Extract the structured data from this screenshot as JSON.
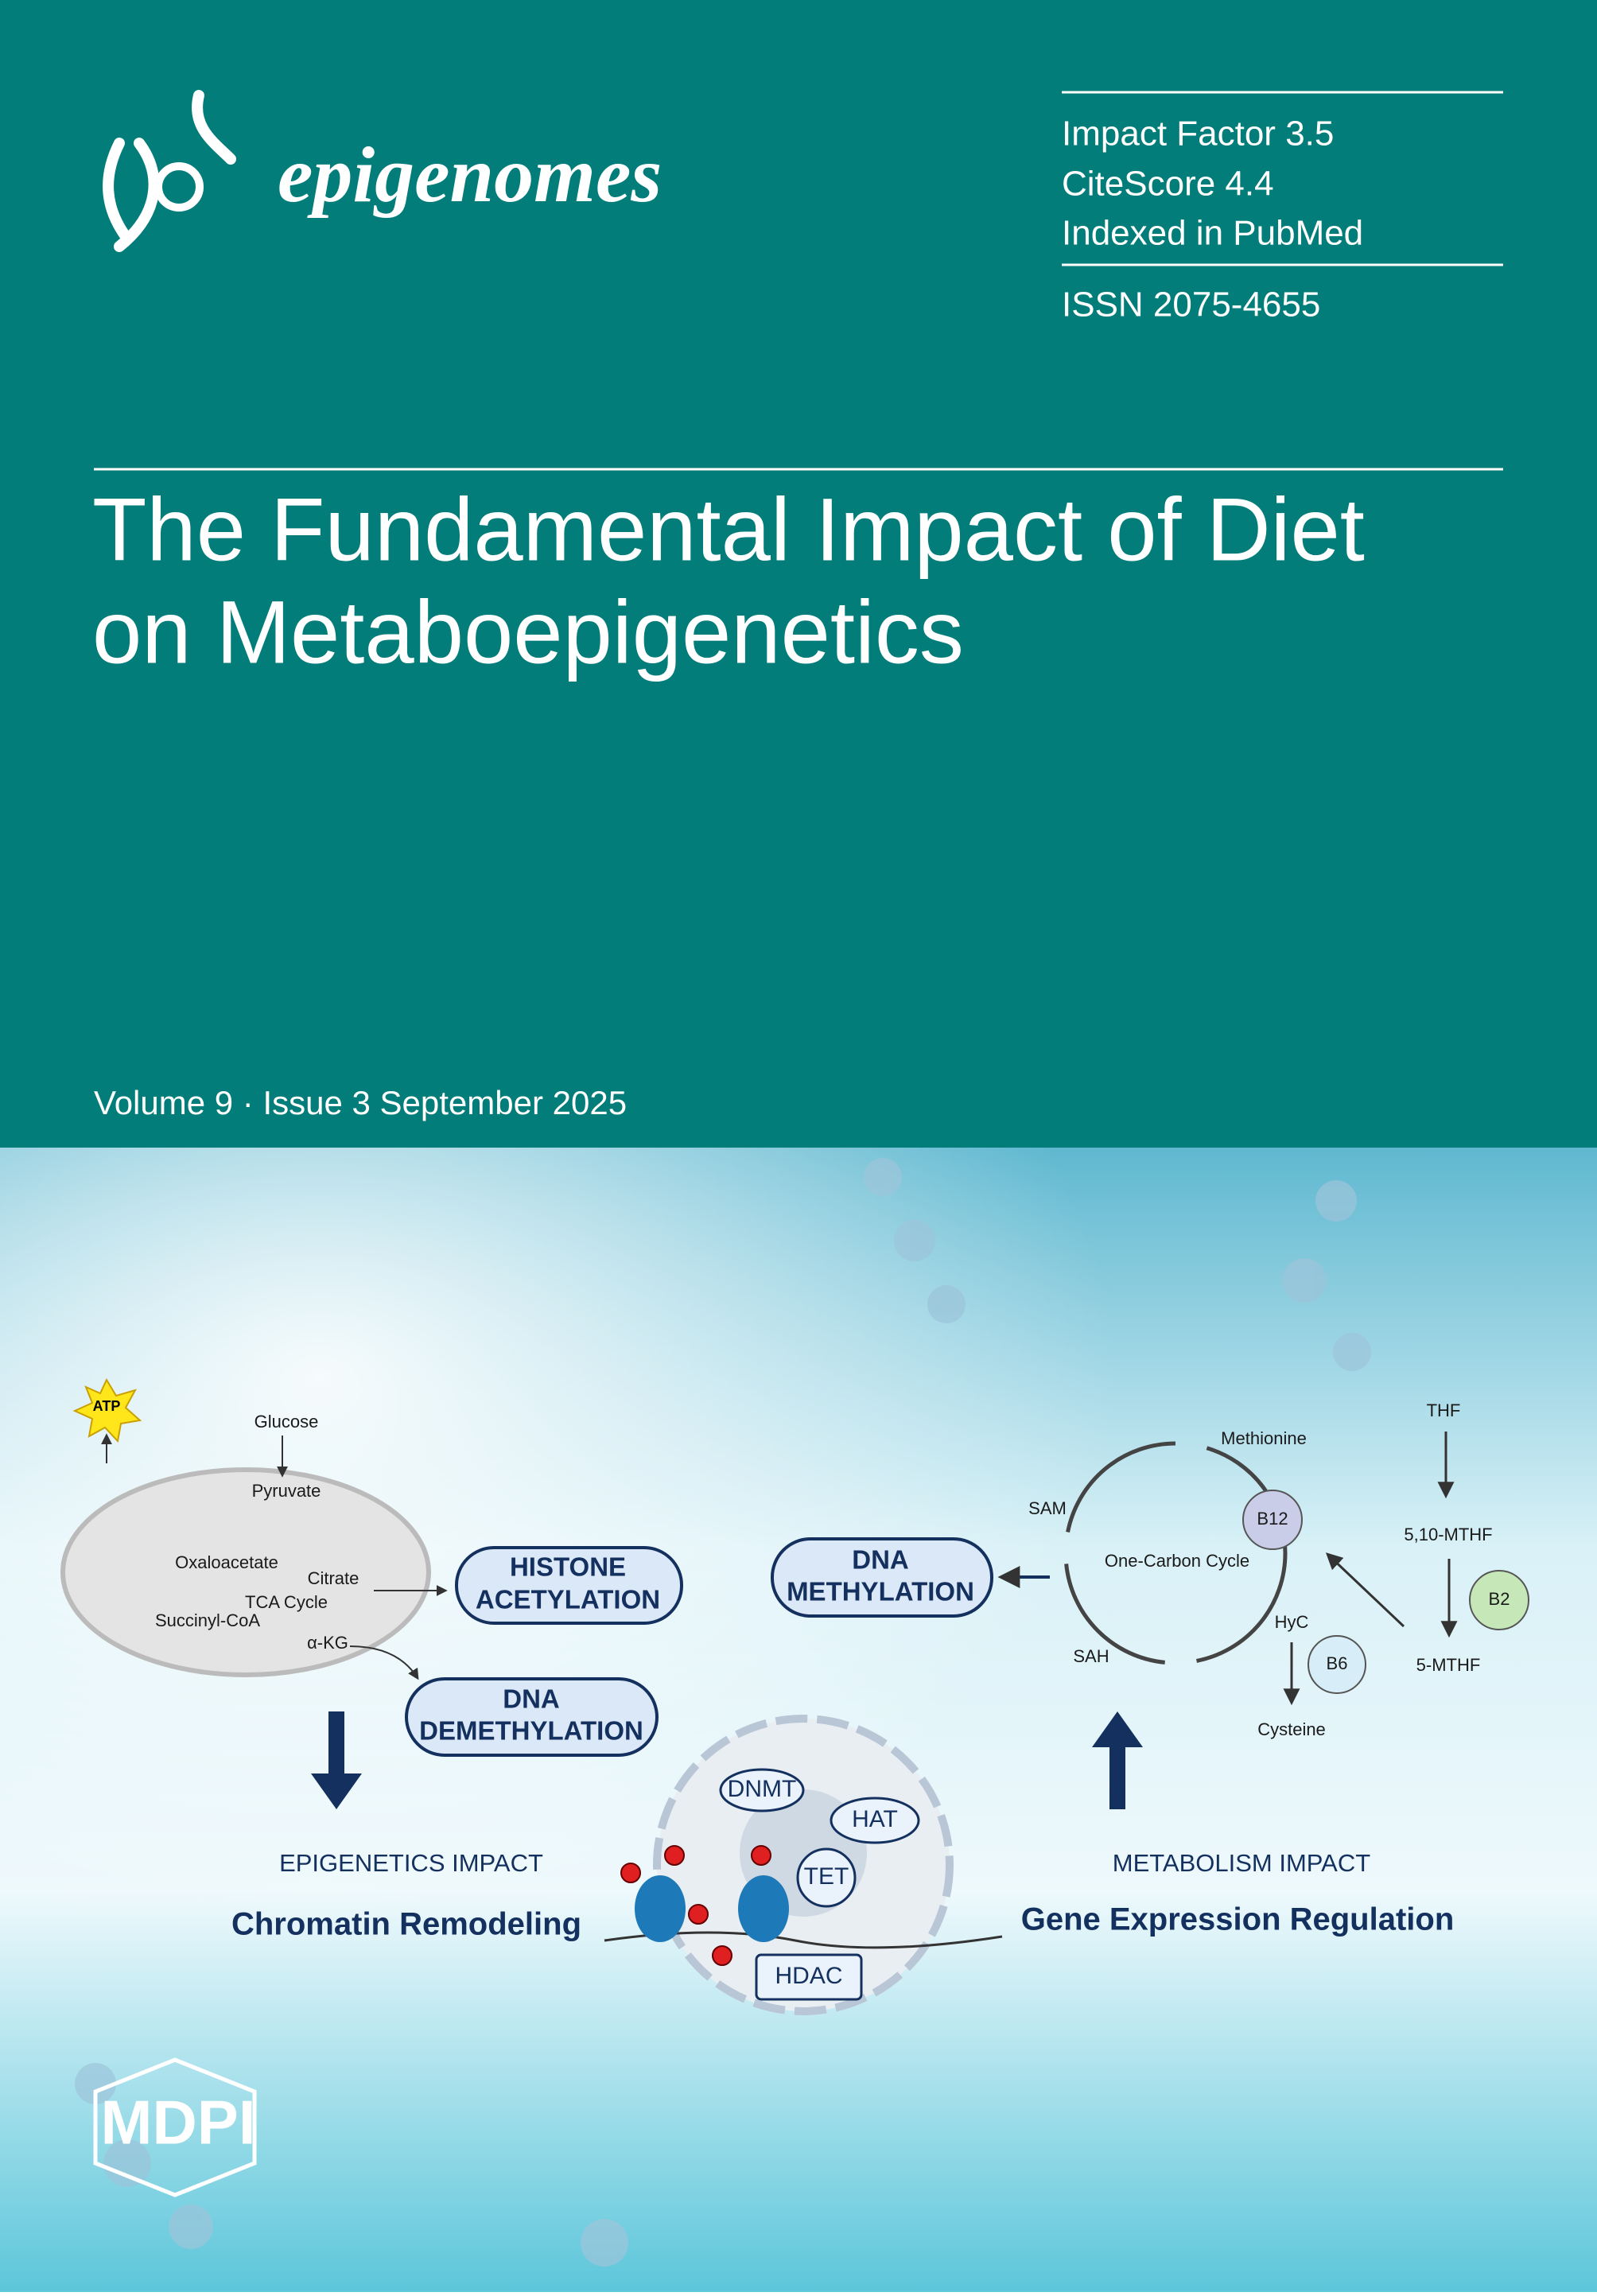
{
  "header": {
    "journal": "epigenomes",
    "metrics": [
      "Impact Factor 3.5",
      "CiteScore 4.4",
      "Indexed in PubMed"
    ],
    "issn": "ISSN 2075-4655"
  },
  "article": {
    "title_lines": [
      "The Fundamental Impact of Diet",
      "on Metaboepigenetics"
    ]
  },
  "issue": "Volume 9 · Issue 3 September 2025",
  "figure": {
    "atp": "ATP",
    "tca": {
      "glucose": "Glucose",
      "pyruvate": "Pyruvate",
      "oxaloacetate": "Oxaloacetate",
      "citrate": "Citrate",
      "cycle": "TCA Cycle",
      "succinyl": "Succinyl-CoA",
      "akg": "α-KG"
    },
    "histone_acetylation": [
      "HISTONE",
      "ACETYLATION"
    ],
    "dna_demethylation": [
      "DNA",
      "DEMETHYLATION"
    ],
    "dna_methylation": [
      "DNA",
      "METHYLATION"
    ],
    "epigenetics_impact": "EPIGENETICS IMPACT",
    "chromatin_remodeling": "Chromatin Remodeling",
    "metabolism_impact": "METABOLISM IMPACT",
    "gene_expression": "Gene Expression Regulation",
    "enzymes": [
      "DNMT",
      "HAT",
      "TET",
      "HDAC"
    ],
    "one_carbon": {
      "methionine": "Methionine",
      "sam": "SAM",
      "cycle": "One-Carbon Cycle",
      "b12": "B12",
      "sah": "SAH",
      "hyc": "HyC",
      "b6": "B6",
      "cysteine": "Cysteine",
      "thf": "THF",
      "mthf510": "5,10-MTHF",
      "b2": "B2",
      "mthf5": "5-MTHF"
    }
  },
  "publisher": "MDPI"
}
